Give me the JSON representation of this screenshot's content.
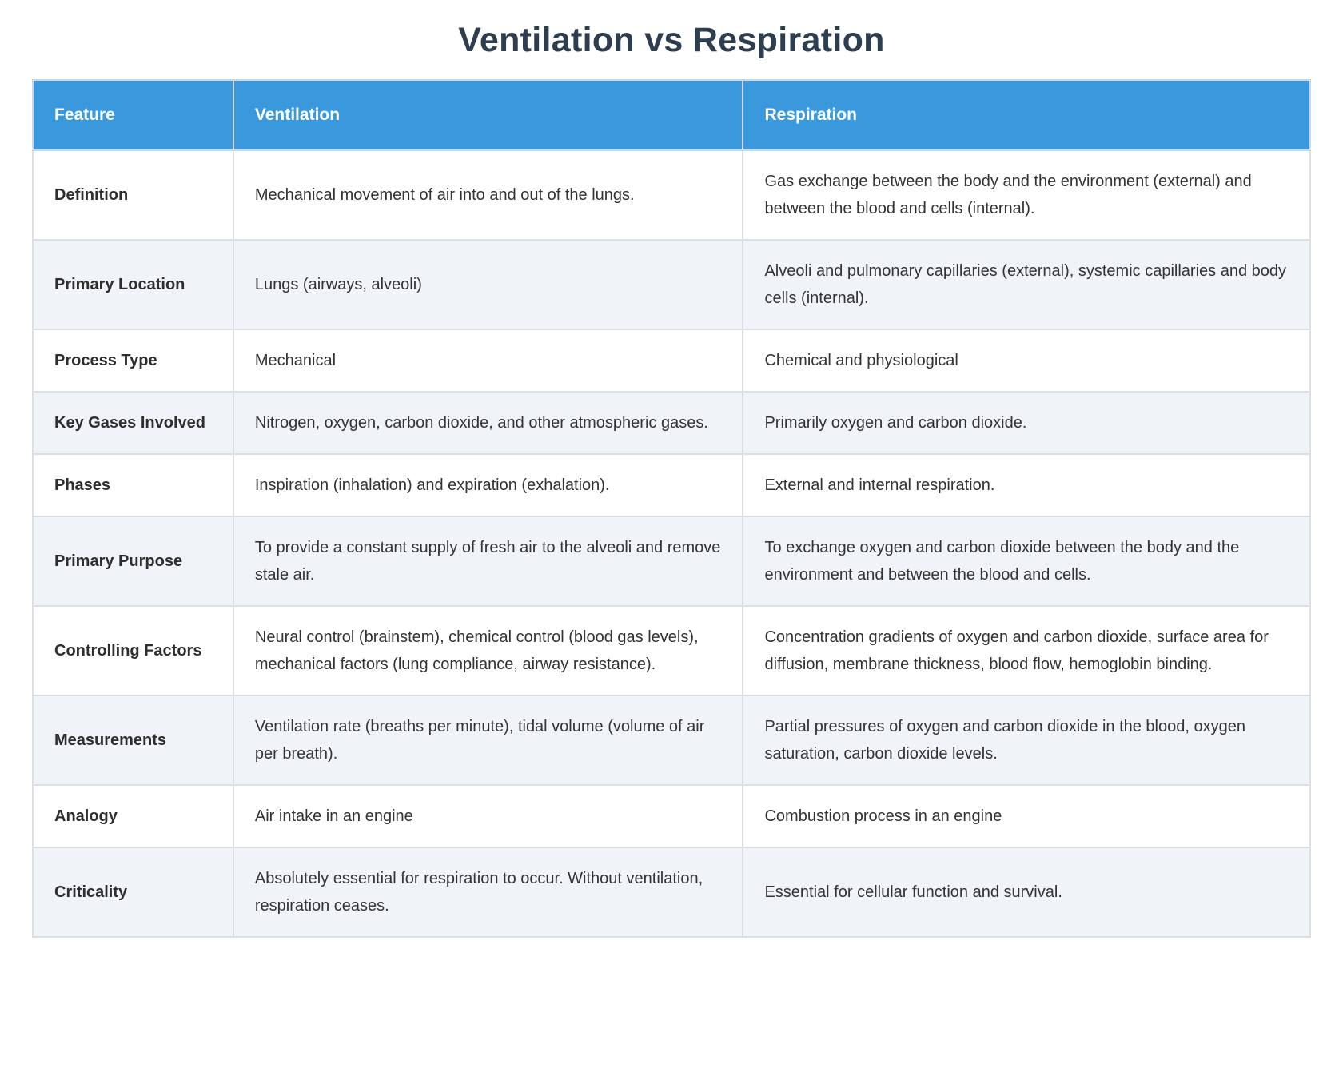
{
  "page": {
    "title": "Ventilation vs Respiration"
  },
  "colors": {
    "header_bg": "#3A99DC",
    "header_text": "#FFFFFF",
    "row_bg": "#FFFFFF",
    "row_alt_bg": "#F0F4F8",
    "border": "#DCDFE3",
    "title_text": "#2C3E50",
    "body_text": "#333333"
  },
  "table": {
    "headers": {
      "feature": "Feature",
      "ventilation": "Ventilation",
      "respiration": "Respiration"
    },
    "rows": [
      {
        "feature": "Definition",
        "ventilation": "Mechanical movement of air into and out of the lungs.",
        "respiration": "Gas exchange between the body and the environment (external) and between the blood and cells (internal)."
      },
      {
        "feature": "Primary Location",
        "ventilation": "Lungs (airways, alveoli)",
        "respiration": "Alveoli and pulmonary capillaries (external), systemic capillaries and body cells (internal)."
      },
      {
        "feature": "Process Type",
        "ventilation": "Mechanical",
        "respiration": "Chemical and physiological"
      },
      {
        "feature": "Key Gases Involved",
        "ventilation": "Nitrogen, oxygen, carbon dioxide, and other atmospheric gases.",
        "respiration": "Primarily oxygen and carbon dioxide."
      },
      {
        "feature": "Phases",
        "ventilation": "Inspiration (inhalation) and expiration (exhalation).",
        "respiration": "External and internal respiration."
      },
      {
        "feature": "Primary Purpose",
        "ventilation": "To provide a constant supply of fresh air to the alveoli and remove stale air.",
        "respiration": "To exchange oxygen and carbon dioxide between the body and the environment and between the blood and cells."
      },
      {
        "feature": "Controlling Factors",
        "ventilation": "Neural control (brainstem), chemical control (blood gas levels), mechanical factors (lung compliance, airway resistance).",
        "respiration": "Concentration gradients of oxygen and carbon dioxide, surface area for diffusion, membrane thickness, blood flow, hemoglobin binding."
      },
      {
        "feature": "Measurements",
        "ventilation": "Ventilation rate (breaths per minute), tidal volume (volume of air per breath).",
        "respiration": "Partial pressures of oxygen and carbon dioxide in the blood, oxygen saturation, carbon dioxide levels."
      },
      {
        "feature": "Analogy",
        "ventilation": "Air intake in an engine",
        "respiration": "Combustion process in an engine"
      },
      {
        "feature": "Criticality",
        "ventilation": "Absolutely essential for respiration to occur. Without ventilation, respiration ceases.",
        "respiration": "Essential for cellular function and survival."
      }
    ]
  }
}
